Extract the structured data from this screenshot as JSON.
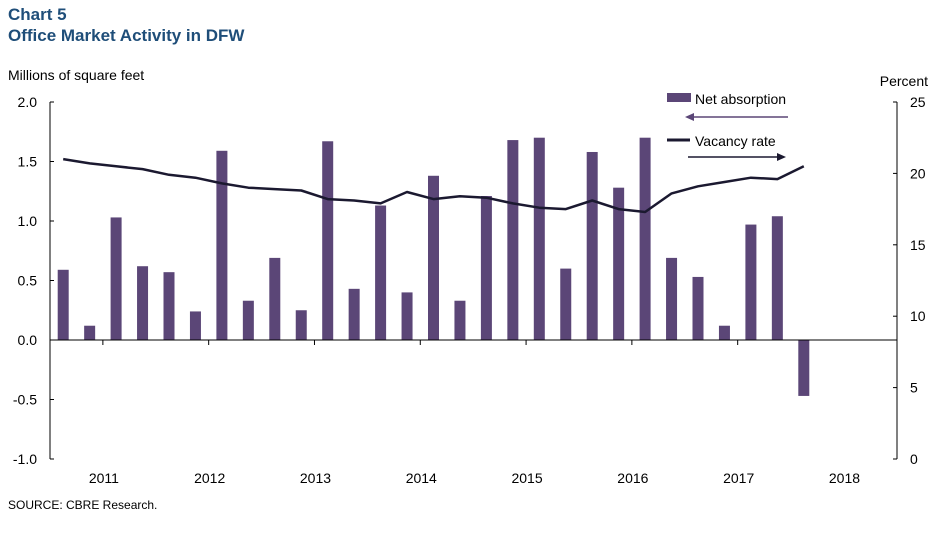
{
  "header": {
    "chart_number": "Chart 5",
    "title": "Office Market Activity in DFW"
  },
  "source": "SOURCE: CBRE Research.",
  "colors": {
    "title": "#1f4e79",
    "bars": "#5b4677",
    "line": "#1b1930",
    "axis": "#000000"
  },
  "chart_data": {
    "type": "bar+line",
    "left_axis": {
      "label": "Millions of square feet",
      "ylim": [
        -1.0,
        2.0
      ],
      "ticks": [
        "2.0",
        "1.5",
        "1.0",
        "0.5",
        "0.0",
        "-0.5",
        "-1.0"
      ]
    },
    "right_axis": {
      "label": "Percent",
      "ylim": [
        0,
        25
      ],
      "ticks": [
        "25",
        "20",
        "15",
        "10",
        "5",
        "0"
      ]
    },
    "x_axis": {
      "tick_labels": [
        "2011",
        "2012",
        "2013",
        "2014",
        "2015",
        "2016",
        "2017",
        "2018"
      ]
    },
    "legend": [
      {
        "name": "Net absorption",
        "arrow": "left"
      },
      {
        "name": "Vacancy rate",
        "arrow": "right"
      }
    ],
    "series": [
      {
        "name": "Net absorption",
        "type": "bar",
        "axis": "left",
        "values": [
          0.59,
          0.12,
          1.03,
          0.62,
          0.57,
          0.24,
          1.59,
          0.33,
          0.69,
          0.25,
          1.67,
          0.43,
          1.13,
          0.4,
          1.38,
          0.33,
          1.21,
          1.68,
          1.7,
          0.6,
          1.58,
          1.28,
          1.7,
          0.69,
          0.53,
          0.12,
          0.97,
          1.04,
          -0.47
        ]
      },
      {
        "name": "Vacancy rate",
        "type": "line",
        "axis": "right",
        "values": [
          21.0,
          20.7,
          20.5,
          20.3,
          19.9,
          19.7,
          19.3,
          19.0,
          18.9,
          18.8,
          18.2,
          18.1,
          17.9,
          18.7,
          18.2,
          18.4,
          18.3,
          17.9,
          17.6,
          17.5,
          18.1,
          17.5,
          17.3,
          18.6,
          19.1,
          19.4,
          19.7,
          19.6,
          20.5
        ]
      }
    ]
  }
}
